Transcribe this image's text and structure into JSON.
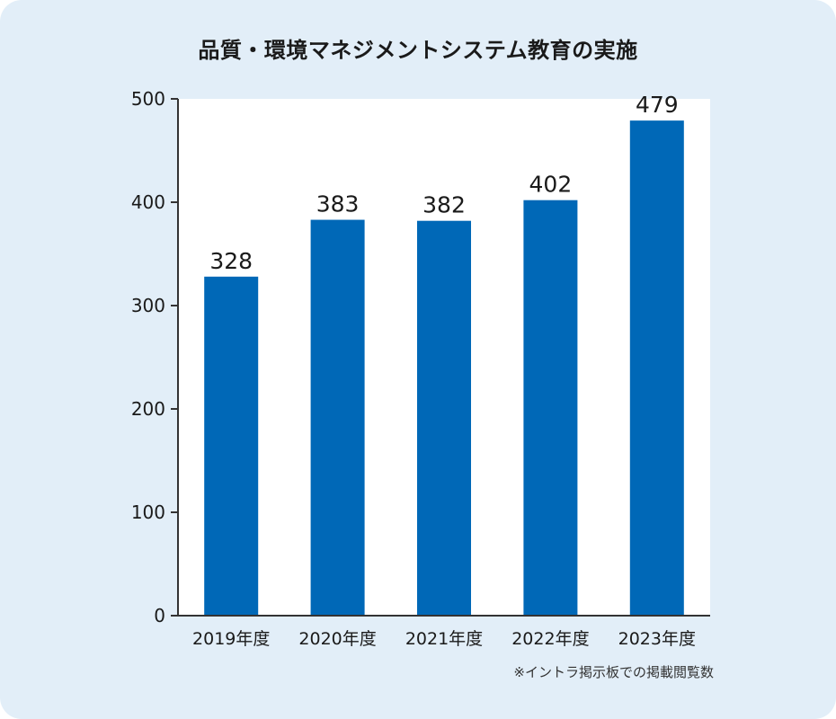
{
  "chart_data": {
    "type": "bar",
    "title": "品質・環境マネジメントシステム教育の実施",
    "categories": [
      "2019年度",
      "2020年度",
      "2021年度",
      "2022年度",
      "2023年度"
    ],
    "values": [
      328,
      383,
      382,
      402,
      479
    ],
    "data_labels": [
      "328",
      "383",
      "382",
      "402",
      "479"
    ],
    "ylim": [
      0,
      500
    ],
    "yticks": [
      0,
      100,
      200,
      300,
      400,
      500
    ],
    "xlabel": "",
    "ylabel": "",
    "grid": false,
    "footnote": "※イントラ掲示板での掲載閲覧数",
    "colors": {
      "bar": "#0068b7",
      "background": "#e2eef8",
      "plot_area": "#ffffff",
      "axis": "#333333",
      "text": "#1a1a1a"
    }
  }
}
